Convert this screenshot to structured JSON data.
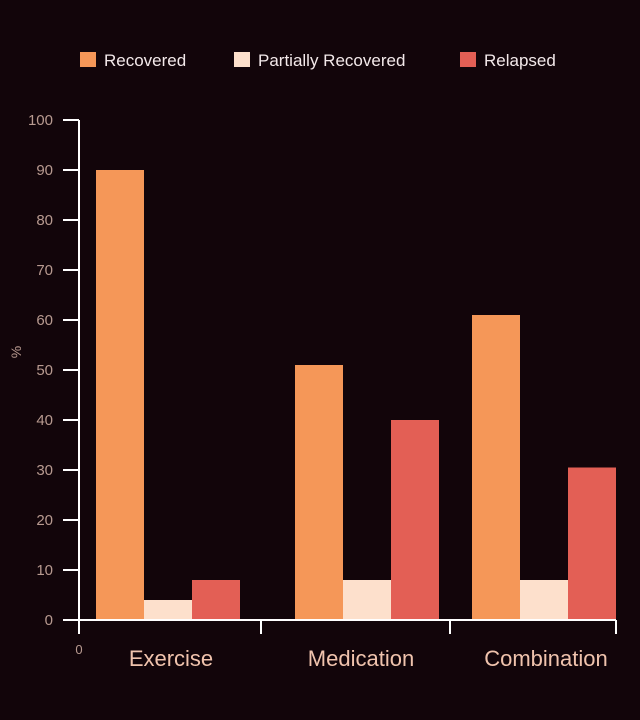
{
  "chart_data": {
    "type": "bar",
    "title": "",
    "xlabel": "",
    "ylabel": "%",
    "ylim": [
      0,
      100
    ],
    "yticks": [
      0,
      10,
      20,
      30,
      40,
      50,
      60,
      70,
      80,
      90,
      100
    ],
    "categories": [
      "Exercise",
      "Medication",
      "Combination"
    ],
    "x_origin_label": "0",
    "legend_position": "top",
    "grid": false,
    "series": [
      {
        "name": "Recovered",
        "color": "#f59758",
        "values": [
          90,
          51,
          61
        ]
      },
      {
        "name": "Partially Recovered",
        "color": "#fde0cc",
        "values": [
          4,
          8,
          8
        ]
      },
      {
        "name": "Relapsed",
        "color": "#e35f55",
        "values": [
          8,
          40,
          30.5
        ]
      }
    ]
  },
  "colors": {
    "background": "#12050a",
    "axis": "#ffffff",
    "tick_text": "#b89a90",
    "category_text": "#f0c3ad",
    "legend_text": "#f3e9ea"
  }
}
